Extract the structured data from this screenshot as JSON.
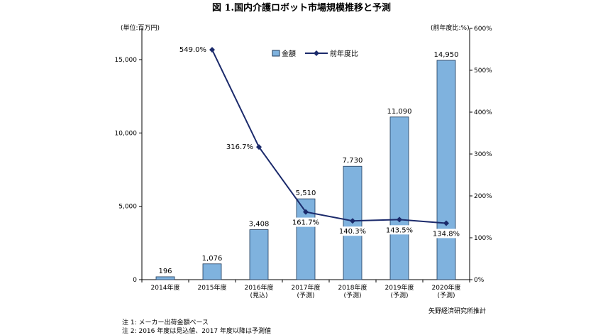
{
  "title": "図 1.国内介護ロボット市場規模推移と予測",
  "left_unit": "(単位:百万円)",
  "right_unit": "(前年度比:%)",
  "legend": {
    "bar": "金額",
    "line": "前年度比"
  },
  "source": "矢野経済研究所推計",
  "notes": [
    "注 1: メーカー出荷金額ベース",
    "注 2: 2016 年度は見込値、2017 年度以降は予測値"
  ],
  "colors": {
    "bar_fill": "#7fb2de",
    "bar_stroke": "#1f3a5a",
    "line": "#1b2a6b"
  },
  "chart_data": {
    "type": "bar",
    "categories": [
      [
        "2014年度"
      ],
      [
        "2015年度"
      ],
      [
        "2016年度",
        "(見込)"
      ],
      [
        "2017年度",
        "(予測)"
      ],
      [
        "2018年度",
        "(予測)"
      ],
      [
        "2019年度",
        "(予測)"
      ],
      [
        "2020年度",
        "(予測)"
      ]
    ],
    "series": [
      {
        "name": "金額",
        "type": "bar",
        "axis": "left",
        "values": [
          196,
          1076,
          3408,
          5510,
          7730,
          11090,
          14950
        ],
        "labels": [
          "196",
          "1,076",
          "3,408",
          "5,510",
          "7,730",
          "11,090",
          "14,950"
        ]
      },
      {
        "name": "前年度比",
        "type": "line",
        "axis": "right",
        "values": [
          null,
          549.0,
          316.7,
          161.7,
          140.3,
          143.5,
          134.8
        ],
        "labels": [
          null,
          "549.0%",
          "316.7%",
          "161.7%",
          "140.3%",
          "143.5%",
          "134.8%"
        ]
      }
    ],
    "y_left": {
      "range": [
        0,
        17000
      ],
      "ticks": [
        0,
        5000,
        10000,
        15000
      ],
      "tick_labels": [
        "0",
        "5,000",
        "10,000",
        "15,000"
      ]
    },
    "y_right": {
      "range": [
        0,
        600
      ],
      "ticks": [
        0,
        100,
        200,
        300,
        400,
        500,
        600
      ],
      "tick_labels": [
        "0%",
        "100%",
        "200%",
        "300%",
        "400%",
        "500%",
        "600%"
      ]
    },
    "legend_position": "top-center",
    "grid": false
  }
}
